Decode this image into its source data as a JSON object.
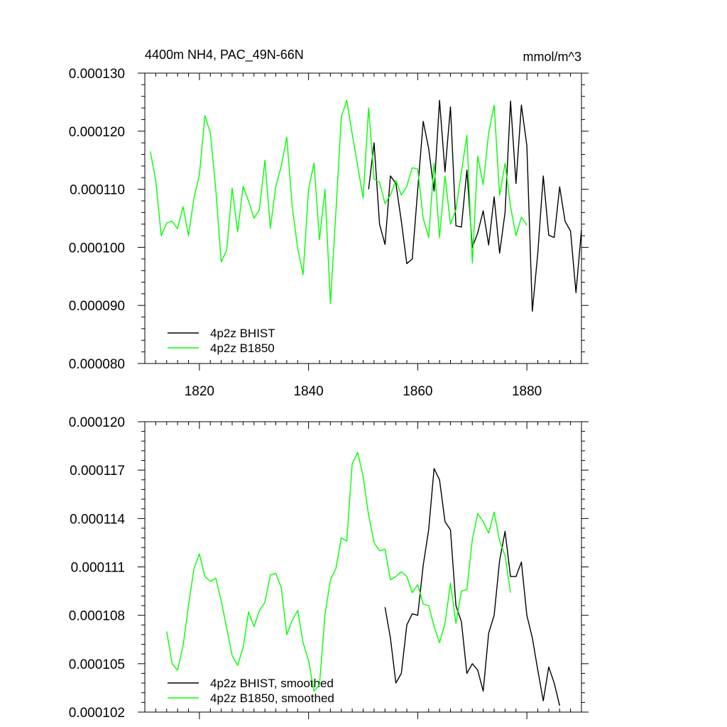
{
  "chart_data": [
    {
      "type": "line",
      "title": "4400m NH4, PAC_49N-66N",
      "units": "mmol/m^3",
      "xlim": [
        1810,
        1890
      ],
      "ylim": [
        8e-05,
        0.00013
      ],
      "xticks": [
        1820,
        1840,
        1860,
        1880
      ],
      "xtick_labels": [
        "1820",
        "1840",
        "1860",
        "1880"
      ],
      "yticks": [
        8e-05,
        9e-05,
        0.0001,
        0.00011,
        0.00012,
        0.00013
      ],
      "ytick_labels": [
        "0.000080",
        "0.000090",
        "0.000100",
        "0.000110",
        "0.000120",
        "0.000130"
      ],
      "legend_position": "bottom-left",
      "series": [
        {
          "name": "4p2z BHIST",
          "color": "#000000",
          "x_start": 1851,
          "values": [
            0.00011,
            0.000118,
            0.000104,
            0.0001005,
            0.0001123,
            0.000111,
            0.0001045,
            9.72e-05,
            9.8e-05,
            0.00011,
            0.0001217,
            0.000117,
            0.0001097,
            0.0001253,
            0.000113,
            0.0001242,
            0.0001037,
            0.0001035,
            0.0001133,
            0.0001,
            0.0001025,
            0.0001063,
            0.0001004,
            0.0001087,
            9.9e-05,
            0.000106,
            0.0001252,
            0.000111,
            0.0001245,
            0.0001175,
            8.9e-05,
            9.9e-05,
            0.0001123,
            0.0001021,
            0.0001017,
            0.0001104,
            0.0001045,
            0.0001028,
            9.22e-05,
            0.000103
          ]
        },
        {
          "name": "4p2z B1850",
          "color": "#00ff00",
          "x_start": 1811,
          "values": [
            0.0001165,
            0.0001115,
            0.000102,
            0.0001042,
            0.0001045,
            0.0001032,
            0.000107,
            0.000102,
            0.0001085,
            0.0001125,
            0.0001227,
            0.0001197,
            0.00011,
            9.75e-05,
            9.95e-05,
            0.0001102,
            0.0001027,
            0.0001105,
            0.000108,
            0.000105,
            0.0001065,
            0.000115,
            0.0001033,
            0.0001105,
            0.000114,
            0.000119,
            0.000107,
            9.98e-05,
            9.53e-05,
            0.00011,
            0.0001145,
            0.0001013,
            0.00011,
            9.03e-05,
            0.000106,
            0.0001225,
            0.0001253,
            0.0001195,
            0.000114,
            0.0001085,
            0.000124,
            0.0001118,
            0.0001112,
            0.0001075,
            0.000109,
            0.0001115,
            0.000109,
            0.0001105,
            0.0001137,
            0.0001135,
            0.000105,
            0.0001017,
            0.0001145,
            0.0001017,
            0.0001123,
            0.000104,
            0.0001065,
            0.000113,
            0.0001193,
            9.73e-05,
            0.0001157,
            0.0001108,
            0.0001197,
            0.0001245,
            0.000109,
            0.0001145,
            0.000107,
            0.000102,
            0.0001052,
            0.0001038
          ]
        }
      ]
    },
    {
      "type": "line",
      "xlim": [
        1810,
        1890
      ],
      "ylim": [
        0.000102,
        0.00012
      ],
      "xticks": [
        1820,
        1840,
        1860,
        1880
      ],
      "xtick_labels": [
        "",
        "",
        "",
        ""
      ],
      "yticks": [
        0.000102,
        0.000105,
        0.000108,
        0.000111,
        0.000114,
        0.000117,
        0.00012
      ],
      "ytick_labels": [
        "0.000102",
        "0.000105",
        "0.000108",
        "0.000111",
        "0.000114",
        "0.000117",
        "0.000120"
      ],
      "legend_position": "bottom-left",
      "series": [
        {
          "name": "4p2z BHIST, smoothed",
          "color": "#000000",
          "x_start": 1854,
          "values": [
            0.0001085,
            0.0001066,
            0.0001038,
            0.0001044,
            0.0001074,
            0.0001081,
            0.000108,
            0.0001111,
            0.0001133,
            0.0001171,
            0.0001164,
            0.0001138,
            0.0001133,
            0.0001086,
            0.0001076,
            0.0001044,
            0.000105,
            0.0001046,
            0.0001033,
            0.0001069,
            0.000108,
            0.0001114,
            0.0001132,
            0.0001104,
            0.0001104,
            0.0001113,
            0.000108,
            0.0001066,
            0.0001046,
            0.0001027,
            0.0001048,
            0.0001038,
            0.0001024
          ]
        },
        {
          "name": "4p2z B1850, smoothed",
          "color": "#00ff00",
          "x_start": 1814,
          "values": [
            0.000107,
            0.000105,
            0.0001046,
            0.0001061,
            0.0001086,
            0.0001109,
            0.0001118,
            0.0001104,
            0.0001101,
            0.0001103,
            0.0001089,
            0.0001072,
            0.0001055,
            0.0001049,
            0.000106,
            0.0001082,
            0.0001073,
            0.0001083,
            0.0001088,
            0.0001105,
            0.0001106,
            0.0001097,
            0.0001068,
            0.0001077,
            0.0001083,
            0.0001063,
            0.0001052,
            0.0001033,
            0.0001037,
            0.000108,
            0.0001102,
            0.0001109,
            0.0001128,
            0.0001126,
            0.0001174,
            0.0001181,
            0.0001166,
            0.0001142,
            0.0001125,
            0.000112,
            0.0001121,
            0.0001102,
            0.0001104,
            0.0001107,
            0.0001104,
            0.0001094,
            0.0001099,
            0.0001087,
            0.0001086,
            0.0001073,
            0.0001063,
            0.0001075,
            0.00011,
            0.0001075,
            0.0001095,
            0.0001096,
            0.0001127,
            0.0001143,
            0.0001138,
            0.0001131,
            0.0001144,
            0.0001126,
            0.0001117,
            0.0001094
          ]
        }
      ]
    }
  ]
}
